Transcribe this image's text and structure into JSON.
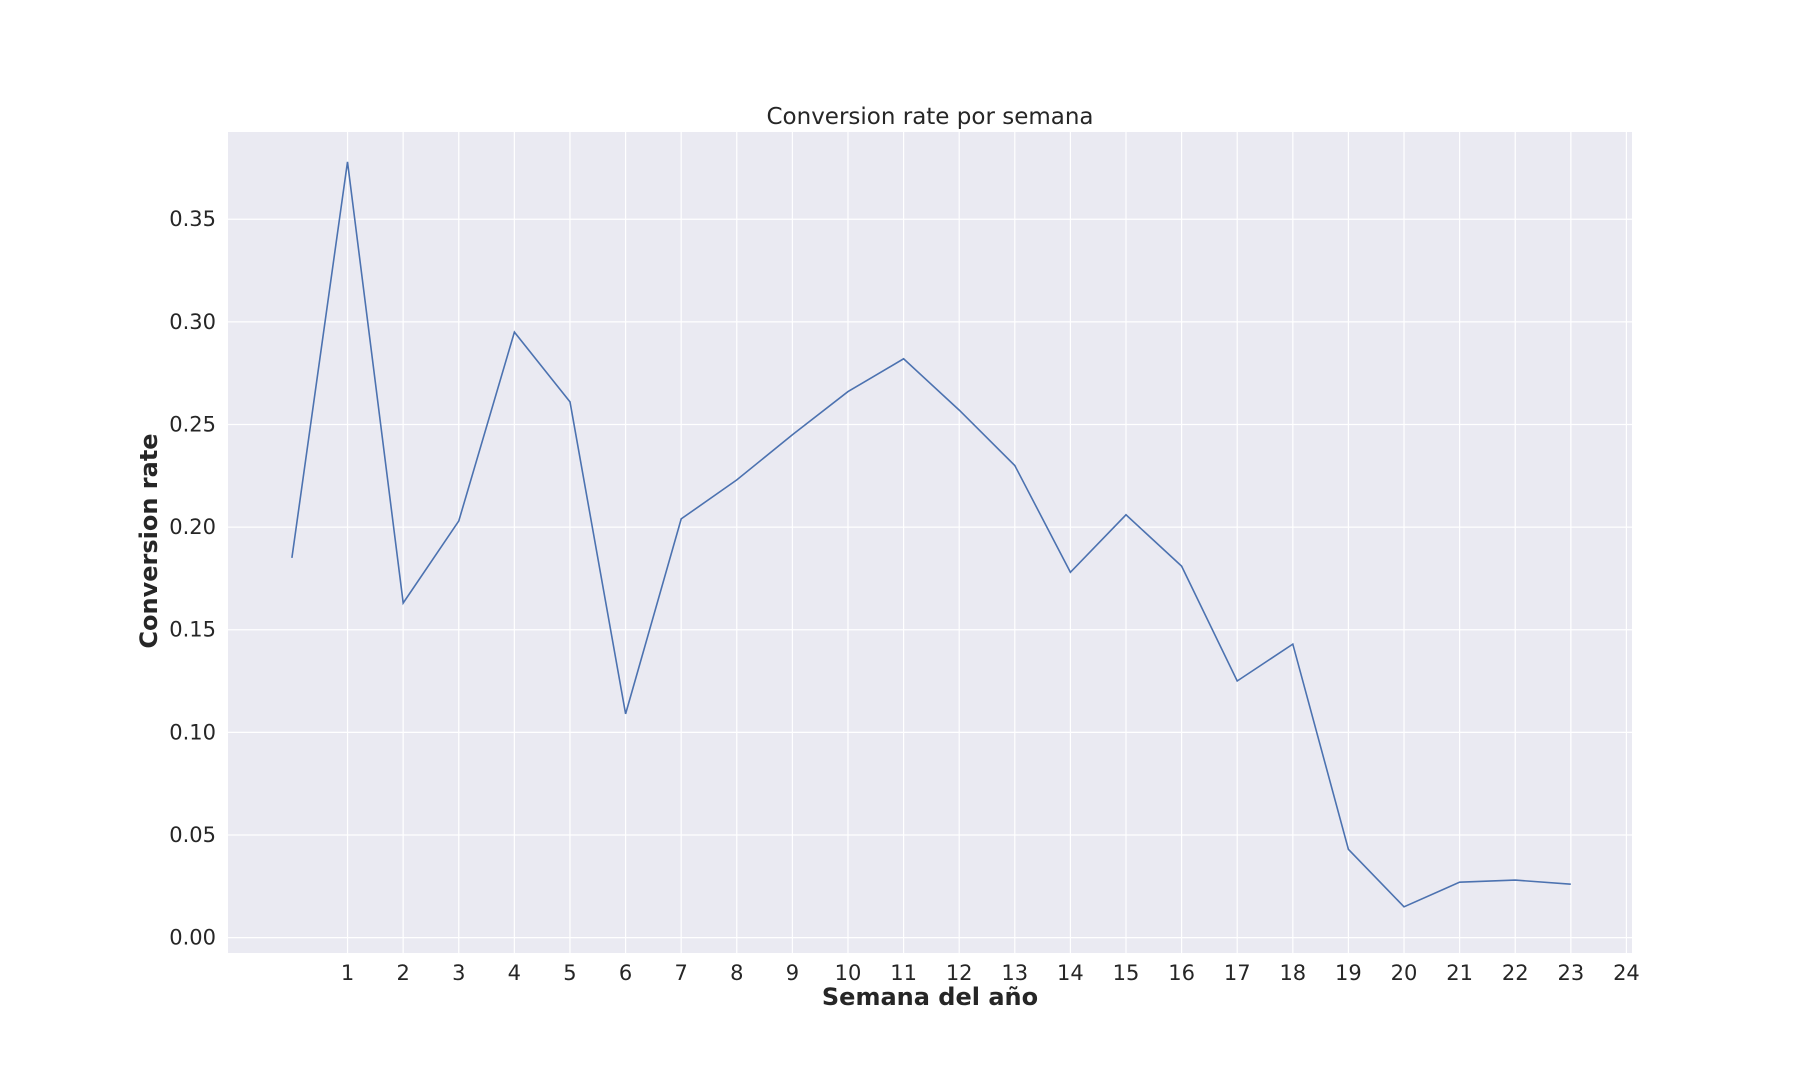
{
  "chart_data": {
    "type": "line",
    "title": "Conversion rate por semana",
    "xlabel": "Semana del año",
    "ylabel": "Conversion rate",
    "xlim": [
      -1.15,
      24.1
    ],
    "ylim": [
      -0.0075,
      0.3925
    ],
    "xticks": [
      1,
      2,
      3,
      4,
      5,
      6,
      7,
      8,
      9,
      10,
      11,
      12,
      13,
      14,
      15,
      16,
      17,
      18,
      19,
      20,
      21,
      22,
      23,
      24
    ],
    "yticks": [
      0.0,
      0.05,
      0.1,
      0.15,
      0.2,
      0.25,
      0.3,
      0.35
    ],
    "ytick_labels": [
      "0.00",
      "0.05",
      "0.10",
      "0.15",
      "0.20",
      "0.25",
      "0.30",
      "0.35"
    ],
    "grid": true,
    "background": "#eaeaf2",
    "grid_color": "#ffffff",
    "line_color": "#4c72b0",
    "series": [
      {
        "x": [
          0,
          1,
          2,
          3,
          4,
          5,
          6,
          7,
          8,
          9,
          10,
          11,
          12,
          13,
          14,
          15,
          16,
          17,
          18,
          19,
          20,
          21,
          22,
          23
        ],
        "values": [
          0.185,
          0.378,
          0.163,
          0.203,
          0.295,
          0.261,
          0.109,
          0.204,
          0.223,
          0.245,
          0.266,
          0.282,
          0.257,
          0.23,
          0.178,
          0.206,
          0.181,
          0.125,
          0.143,
          0.043,
          0.015,
          0.027,
          0.028,
          0.026
        ]
      }
    ]
  }
}
